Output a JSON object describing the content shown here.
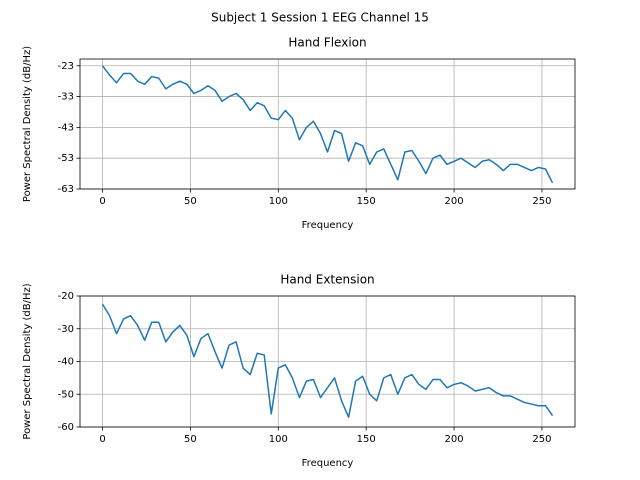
{
  "title": "Subject 1 Session 1 EEG Channel 15",
  "chart_data": [
    {
      "type": "line",
      "title": "Hand Flexion",
      "x_label": "Frequency",
      "y_label": "Power Spectral Density (dB/Hz)",
      "grid": true,
      "color": "#1f77b4",
      "xlim": [
        -12.8,
        268.8
      ],
      "xticks": [
        0,
        50,
        100,
        150,
        200,
        250
      ],
      "ylim": [
        -63,
        -20.8
      ],
      "yticks": [
        -23,
        -33,
        -43,
        -53,
        -63
      ],
      "x": [
        0,
        4,
        8,
        12,
        16,
        20,
        24,
        28,
        32,
        36,
        40,
        44,
        48,
        52,
        56,
        60,
        64,
        68,
        72,
        76,
        80,
        84,
        88,
        92,
        96,
        100,
        104,
        108,
        112,
        116,
        120,
        124,
        128,
        132,
        136,
        140,
        144,
        148,
        152,
        156,
        160,
        164,
        168,
        172,
        176,
        180,
        184,
        188,
        192,
        196,
        200,
        204,
        208,
        212,
        216,
        220,
        224,
        228,
        232,
        236,
        240,
        244,
        248,
        252,
        256
      ],
      "values": [
        -23,
        -26,
        -28.5,
        -25.5,
        -25.5,
        -28,
        -29,
        -26.5,
        -27,
        -30.5,
        -29,
        -28,
        -29,
        -32,
        -31,
        -29.5,
        -31,
        -34.5,
        -33,
        -32,
        -34,
        -37.5,
        -35,
        -36,
        -40,
        -40.5,
        -37.5,
        -40,
        -47,
        -43,
        -41,
        -45,
        -51,
        -44,
        -45,
        -54,
        -48,
        -49,
        -55,
        -51,
        -50,
        -55,
        -60,
        -51,
        -50.5,
        -54,
        -58,
        -53,
        -52,
        -55,
        -54,
        -53,
        -54.5,
        -56,
        -54,
        -53.5,
        -55,
        -57,
        -55,
        -55,
        -56,
        -57,
        -56,
        -56.5,
        -61
      ]
    },
    {
      "type": "line",
      "title": "Hand Extension",
      "x_label": "Frequency",
      "y_label": "Power Spectral Density (dB/Hz)",
      "grid": true,
      "color": "#1f77b4",
      "xlim": [
        -12.8,
        268.8
      ],
      "xticks": [
        0,
        50,
        100,
        150,
        200,
        250
      ],
      "ylim": [
        -60,
        -20
      ],
      "yticks": [
        -20,
        -30,
        -40,
        -50,
        -60
      ],
      "x": [
        0,
        4,
        8,
        12,
        16,
        20,
        24,
        28,
        32,
        36,
        40,
        44,
        48,
        52,
        56,
        60,
        64,
        68,
        72,
        76,
        80,
        84,
        88,
        92,
        96,
        100,
        104,
        108,
        112,
        116,
        120,
        124,
        128,
        132,
        136,
        140,
        144,
        148,
        152,
        156,
        160,
        164,
        168,
        172,
        176,
        180,
        184,
        188,
        192,
        196,
        200,
        204,
        208,
        212,
        216,
        220,
        224,
        228,
        232,
        236,
        240,
        244,
        248,
        252,
        256
      ],
      "values": [
        -22.5,
        -26,
        -31.5,
        -27,
        -26,
        -29,
        -33.5,
        -28,
        -28,
        -34,
        -31,
        -29,
        -32,
        -38.5,
        -33,
        -31.5,
        -37,
        -42,
        -35,
        -34,
        -42,
        -44,
        -37.5,
        -38,
        -56,
        -42,
        -41,
        -45,
        -51,
        -46,
        -45.5,
        -51,
        -48,
        -45,
        -52,
        -57,
        -46,
        -44.5,
        -50,
        -52,
        -45,
        -44,
        -50,
        -45,
        -44,
        -47,
        -48.5,
        -45.5,
        -45.5,
        -48,
        -47,
        -46.5,
        -47.5,
        -49,
        -48.5,
        -48,
        -49.5,
        -50.5,
        -50.5,
        -51.5,
        -52.5,
        -53,
        -53.5,
        -53.5,
        -56.5
      ]
    }
  ]
}
